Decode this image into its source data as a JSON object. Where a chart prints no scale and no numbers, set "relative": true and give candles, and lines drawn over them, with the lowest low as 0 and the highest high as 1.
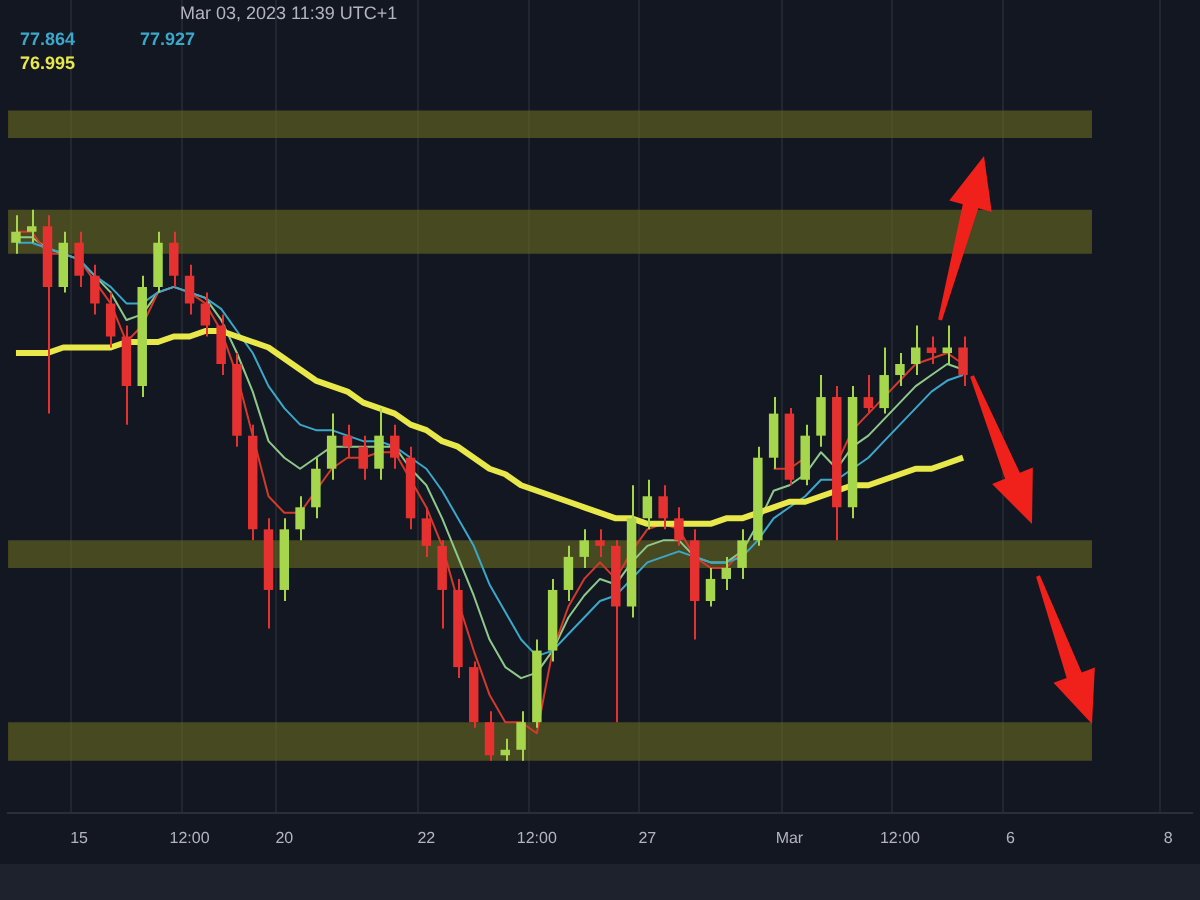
{
  "chart_data": {
    "type": "candlestick",
    "relative": true,
    "tick_labels": "x",
    "grid": "x",
    "annotations": [
      "Mar 03, 2023 11:39 UTC+1",
      "77.864",
      "77.927",
      "76.995"
    ],
    "categories": [
      null,
      null,
      null,
      null,
      "15",
      null,
      null,
      null,
      null,
      null,
      null,
      "12:00",
      null,
      null,
      null,
      null,
      null,
      "20",
      null,
      null,
      null,
      null,
      null,
      null,
      null,
      null,
      "22",
      null,
      null,
      null,
      null,
      null,
      null,
      "12:00",
      null,
      null,
      null,
      null,
      null,
      null,
      "27",
      null,
      null,
      null,
      null,
      null,
      null,
      null,
      null,
      "Mar",
      null,
      null,
      null,
      null,
      null,
      null,
      "12:00",
      null,
      null,
      null,
      null,
      null,
      null,
      "6",
      null,
      null,
      null,
      null,
      null,
      null,
      null,
      null,
      null,
      "8",
      null
    ],
    "ohlc": [
      [
        0.94,
        0.99,
        0.92,
        0.96
      ],
      [
        0.96,
        1.0,
        0.94,
        0.97
      ],
      [
        0.97,
        0.99,
        0.63,
        0.86
      ],
      [
        0.86,
        0.96,
        0.85,
        0.94
      ],
      [
        0.94,
        0.96,
        0.86,
        0.88
      ],
      [
        0.88,
        0.9,
        0.81,
        0.83
      ],
      [
        0.83,
        0.85,
        0.75,
        0.77
      ],
      [
        0.77,
        0.79,
        0.61,
        0.68
      ],
      [
        0.68,
        0.88,
        0.66,
        0.86
      ],
      [
        0.86,
        0.96,
        0.85,
        0.94
      ],
      [
        0.94,
        0.96,
        0.86,
        0.88
      ],
      [
        0.88,
        0.9,
        0.81,
        0.83
      ],
      [
        0.83,
        0.85,
        0.77,
        0.79
      ],
      [
        0.79,
        0.81,
        0.7,
        0.72
      ],
      [
        0.72,
        0.74,
        0.57,
        0.59
      ],
      [
        0.59,
        0.61,
        0.4,
        0.42
      ],
      [
        0.42,
        0.44,
        0.24,
        0.31
      ],
      [
        0.31,
        0.44,
        0.29,
        0.42
      ],
      [
        0.42,
        0.48,
        0.4,
        0.46
      ],
      [
        0.46,
        0.55,
        0.44,
        0.53
      ],
      [
        0.53,
        0.63,
        0.51,
        0.59
      ],
      [
        0.59,
        0.61,
        0.55,
        0.57
      ],
      [
        0.57,
        0.59,
        0.51,
        0.53
      ],
      [
        0.53,
        0.64,
        0.51,
        0.59
      ],
      [
        0.59,
        0.61,
        0.53,
        0.55
      ],
      [
        0.55,
        0.57,
        0.42,
        0.44
      ],
      [
        0.44,
        0.46,
        0.37,
        0.39
      ],
      [
        0.39,
        0.4,
        0.24,
        0.31
      ],
      [
        0.31,
        0.33,
        0.15,
        0.17
      ],
      [
        0.17,
        0.18,
        0.06,
        0.07
      ],
      [
        0.07,
        0.09,
        0.0,
        0.01
      ],
      [
        0.01,
        0.04,
        0.0,
        0.02
      ],
      [
        0.02,
        0.09,
        0.0,
        0.07
      ],
      [
        0.07,
        0.22,
        0.06,
        0.2
      ],
      [
        0.2,
        0.33,
        0.18,
        0.31
      ],
      [
        0.31,
        0.39,
        0.29,
        0.37
      ],
      [
        0.37,
        0.42,
        0.35,
        0.4
      ],
      [
        0.4,
        0.42,
        0.37,
        0.39
      ],
      [
        0.39,
        0.4,
        0.07,
        0.28
      ],
      [
        0.28,
        0.5,
        0.26,
        0.44
      ],
      [
        0.44,
        0.51,
        0.42,
        0.48
      ],
      [
        0.48,
        0.5,
        0.42,
        0.44
      ],
      [
        0.44,
        0.46,
        0.39,
        0.4
      ],
      [
        0.4,
        0.42,
        0.22,
        0.29
      ],
      [
        0.29,
        0.35,
        0.28,
        0.33
      ],
      [
        0.33,
        0.37,
        0.31,
        0.35
      ],
      [
        0.35,
        0.42,
        0.33,
        0.4
      ],
      [
        0.4,
        0.57,
        0.39,
        0.55
      ],
      [
        0.55,
        0.66,
        0.53,
        0.63
      ],
      [
        0.63,
        0.64,
        0.5,
        0.51
      ],
      [
        0.51,
        0.61,
        0.5,
        0.59
      ],
      [
        0.59,
        0.7,
        0.57,
        0.66
      ],
      [
        0.66,
        0.68,
        0.4,
        0.46
      ],
      [
        0.46,
        0.68,
        0.44,
        0.66
      ],
      [
        0.66,
        0.7,
        0.63,
        0.64
      ],
      [
        0.64,
        0.75,
        0.63,
        0.7
      ],
      [
        0.7,
        0.74,
        0.68,
        0.72
      ],
      [
        0.72,
        0.79,
        0.7,
        0.75
      ],
      [
        0.75,
        0.77,
        0.72,
        0.74
      ],
      [
        0.74,
        0.79,
        0.72,
        0.75
      ],
      [
        0.75,
        0.77,
        0.68,
        0.7
      ],
      null,
      null,
      null,
      null,
      null,
      null,
      null,
      null,
      null,
      null,
      null,
      null,
      null,
      null
    ],
    "series": [
      {
        "type": "line",
        "color": "#e8e84a",
        "values": [
          0.74,
          0.74,
          0.74,
          0.75,
          0.75,
          0.75,
          0.75,
          0.76,
          0.76,
          0.76,
          0.77,
          0.77,
          0.78,
          0.78,
          0.77,
          0.76,
          0.75,
          0.73,
          0.71,
          0.69,
          0.68,
          0.67,
          0.65,
          0.64,
          0.63,
          0.61,
          0.6,
          0.58,
          0.57,
          0.55,
          0.53,
          0.52,
          0.5,
          0.49,
          0.48,
          0.47,
          0.46,
          0.45,
          0.44,
          0.44,
          0.43,
          0.43,
          0.43,
          0.43,
          0.43,
          0.44,
          0.44,
          0.45,
          0.46,
          0.47,
          0.47,
          0.48,
          0.49,
          0.5,
          0.5,
          0.51,
          0.52,
          0.53,
          0.53,
          0.54,
          0.55,
          null,
          null,
          null,
          null,
          null,
          null,
          null,
          null,
          null,
          null,
          null,
          null,
          null,
          null
        ]
      },
      {
        "type": "line",
        "color": "#3ba7c9",
        "values": [
          0.94,
          0.94,
          0.93,
          0.92,
          0.91,
          0.88,
          0.86,
          0.83,
          0.83,
          0.85,
          0.86,
          0.85,
          0.84,
          0.82,
          0.78,
          0.74,
          0.68,
          0.64,
          0.61,
          0.6,
          0.6,
          0.59,
          0.58,
          0.58,
          0.57,
          0.55,
          0.53,
          0.49,
          0.44,
          0.39,
          0.32,
          0.27,
          0.22,
          0.19,
          0.2,
          0.23,
          0.26,
          0.29,
          0.3,
          0.33,
          0.36,
          0.37,
          0.38,
          0.37,
          0.36,
          0.36,
          0.37,
          0.4,
          0.44,
          0.46,
          0.48,
          0.51,
          0.51,
          0.53,
          0.55,
          0.58,
          0.61,
          0.64,
          0.67,
          0.69,
          0.7,
          null,
          null,
          null,
          null,
          null,
          null,
          null,
          null,
          null,
          null,
          null,
          null,
          null,
          null
        ]
      },
      {
        "type": "line",
        "color": "#d33a2c",
        "values": [
          0.96,
          0.96,
          0.92,
          0.92,
          0.91,
          0.87,
          0.83,
          0.76,
          0.79,
          0.85,
          0.86,
          0.85,
          0.83,
          0.78,
          0.7,
          0.59,
          0.48,
          0.45,
          0.45,
          0.49,
          0.53,
          0.55,
          0.55,
          0.56,
          0.56,
          0.51,
          0.46,
          0.39,
          0.29,
          0.2,
          0.12,
          0.07,
          0.07,
          0.05,
          0.2,
          0.28,
          0.33,
          0.36,
          0.33,
          0.38,
          0.42,
          0.43,
          0.42,
          0.37,
          0.35,
          0.35,
          0.38,
          null,
          0.53,
          0.53,
          0.55,
          null,
          0.54,
          0.6,
          0.63,
          0.66,
          0.69,
          0.72,
          0.73,
          0.74,
          0.72,
          null,
          null,
          null,
          null,
          null,
          null,
          null,
          null,
          null,
          null,
          null,
          null,
          null,
          null
        ]
      },
      {
        "type": "line",
        "color": "#8fc98a",
        "values": [
          0.95,
          0.95,
          0.93,
          0.92,
          0.91,
          0.88,
          0.85,
          0.8,
          0.81,
          0.85,
          0.86,
          0.85,
          0.84,
          0.8,
          0.74,
          0.67,
          0.58,
          0.55,
          0.53,
          0.55,
          0.57,
          0.57,
          0.57,
          0.57,
          0.57,
          0.53,
          0.5,
          0.44,
          0.37,
          0.3,
          0.22,
          0.17,
          0.15,
          0.16,
          0.2,
          0.26,
          0.3,
          0.33,
          0.32,
          0.36,
          0.39,
          0.4,
          0.4,
          0.37,
          0.36,
          0.36,
          0.38,
          0.43,
          0.49,
          0.5,
          0.52,
          0.56,
          0.53,
          0.57,
          0.59,
          0.62,
          0.65,
          0.68,
          0.7,
          0.72,
          0.71,
          null,
          null,
          null,
          null,
          null,
          null,
          null,
          null,
          null,
          null,
          null,
          null,
          null,
          null
        ]
      }
    ],
    "bands": [
      {
        "axis": "y",
        "from": 1.13,
        "to": 1.18,
        "color": "#6b6b22"
      },
      {
        "axis": "y",
        "from": 0.92,
        "to": 1.0,
        "color": "#6b6b22"
      },
      {
        "axis": "y",
        "from": 0.35,
        "to": 0.4,
        "color": "#6b6b22"
      },
      {
        "axis": "y",
        "from": 0.0,
        "to": 0.07,
        "color": "#6b6b22"
      }
    ]
  }
}
